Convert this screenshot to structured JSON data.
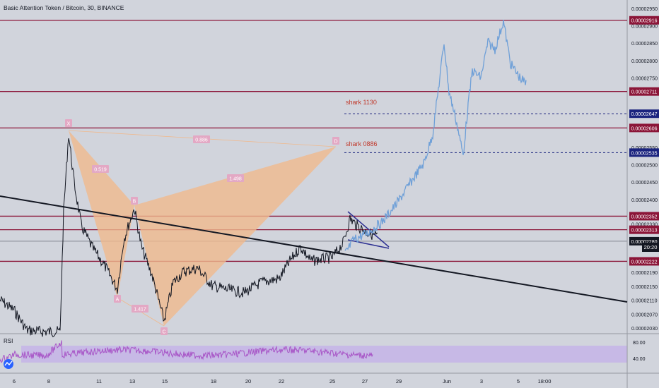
{
  "header": {
    "title": "Basic Attention Token / Bitcoin, 30, BINANCE"
  },
  "chart_data": {
    "type": "line",
    "title": "Basic Attention Token / Bitcoin, 30, BINANCE",
    "yaxis_ticks": [
      "0.00002950",
      "0.00002900",
      "0.00002850",
      "0.00002800",
      "0.00002750",
      "0.00002650",
      "0.00002550",
      "0.00002500",
      "0.00002450",
      "0.00002400",
      "0.00002330",
      "0.00002190",
      "0.00002150",
      "0.00002110",
      "0.00002070",
      "0.00002030"
    ],
    "ylim": [
      2e-05,
      2.97e-05
    ],
    "xaxis_ticks": [
      "6",
      "8",
      "11",
      "13",
      "15",
      "18",
      "20",
      "22",
      "25",
      "27",
      "29",
      "Jun",
      "3",
      "5",
      "18:00"
    ],
    "levels": [
      {
        "value": "0.00002916",
        "color": "#8b1538"
      },
      {
        "value": "0.00002711",
        "color": "#8b1538"
      },
      {
        "value": "0.00002647",
        "color": "#1a237e"
      },
      {
        "value": "0.00002606",
        "color": "#8b1538"
      },
      {
        "value": "0.00002535",
        "color": "#1a237e"
      },
      {
        "value": "0.00002352",
        "color": "#8b1538"
      },
      {
        "value": "0.00002313",
        "color": "#8b1538"
      },
      {
        "value": "0.00002280",
        "color": "#131722"
      },
      {
        "value": "0.00002222",
        "color": "#8b1538"
      }
    ],
    "countdown": "20:20",
    "annotations": {
      "shark1": "shark 1130",
      "shark2": "shark 0886",
      "pattern_points": [
        "X",
        "A",
        "B",
        "C",
        "D"
      ],
      "ratios": [
        "0.519",
        "0.886",
        "1.498",
        "1.417"
      ]
    },
    "rsi": {
      "label": "RSI",
      "ticks": [
        "80.00",
        "40.00"
      ]
    }
  }
}
